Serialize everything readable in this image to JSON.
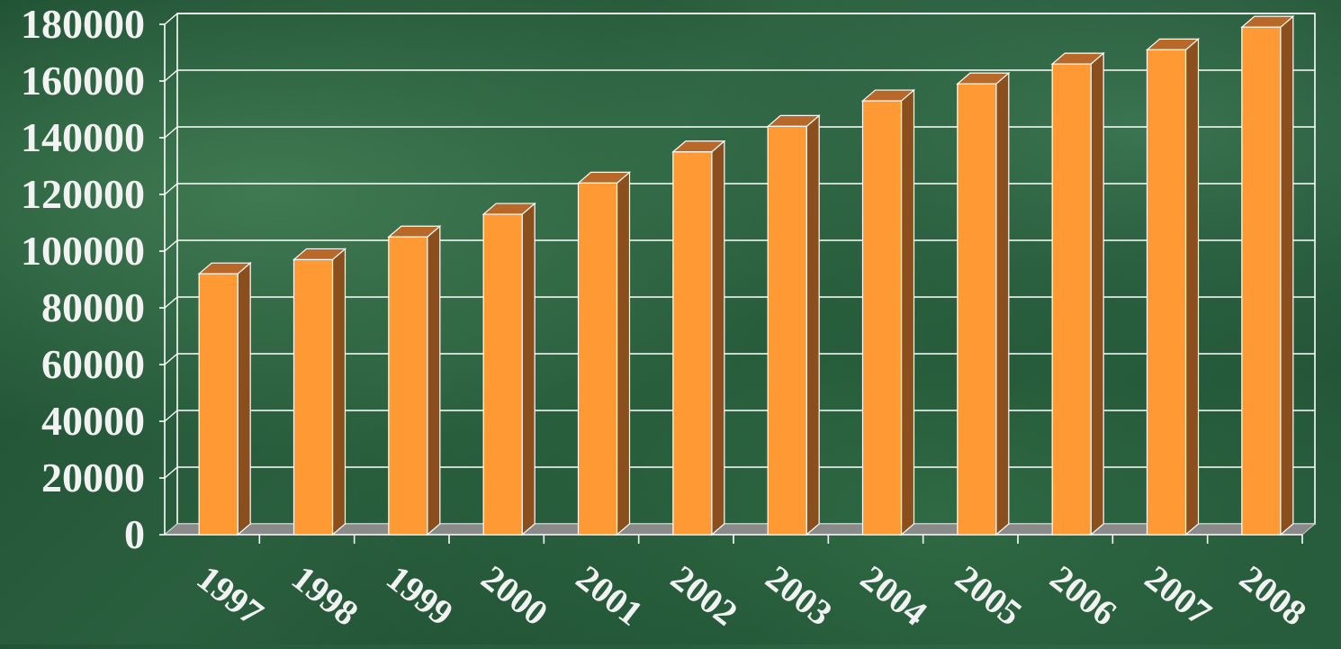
{
  "chart_data": {
    "type": "bar",
    "title": "",
    "xlabel": "",
    "ylabel": "",
    "categories": [
      "1997",
      "1998",
      "1999",
      "2000",
      "2001",
      "2002",
      "2003",
      "2004",
      "2005",
      "2006",
      "2007",
      "2008"
    ],
    "values": [
      92000,
      97000,
      105000,
      113000,
      124000,
      135000,
      144000,
      153000,
      159000,
      166000,
      171000,
      179000
    ],
    "ylim": [
      0,
      180000
    ],
    "yticks": [
      "0",
      "20000",
      "40000",
      "60000",
      "80000",
      "100000",
      "120000",
      "140000",
      "160000",
      "180000"
    ],
    "grid": true,
    "colors": {
      "bar_front": "#ff9933",
      "bar_side": "#8a4f1c",
      "bar_top": "#b8692a",
      "grid": "#ffffff",
      "floor": "#8a8a8a",
      "text": "#f2f2f2"
    }
  }
}
